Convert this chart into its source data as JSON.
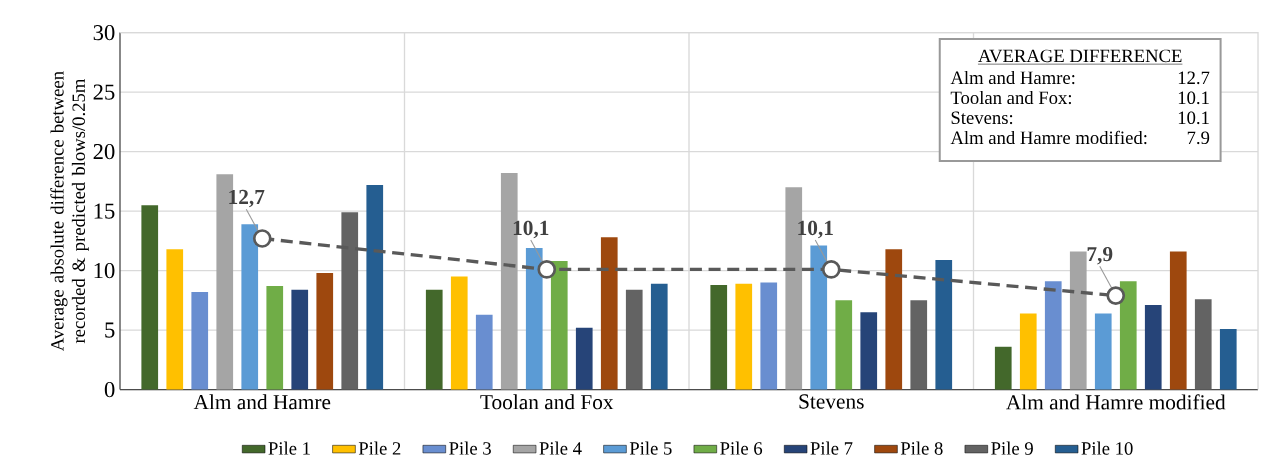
{
  "chart_data": {
    "type": "bar",
    "categories": [
      "Alm and Hamre",
      "Toolan and Fox",
      "Stevens",
      "Alm and Hamre modified"
    ],
    "ylabel": "Average absolute difference between recorded & predicted blows/0.25m",
    "ylim": [
      0,
      30
    ],
    "yticks": [
      0,
      5,
      10,
      15,
      20,
      25,
      30
    ],
    "grid": true,
    "legend": "bottom",
    "series": [
      {
        "name": "Pile 1",
        "color": "#43682b",
        "values": [
          15.5,
          8.4,
          8.8,
          3.6
        ]
      },
      {
        "name": "Pile 2",
        "color": "#ffc000",
        "values": [
          11.8,
          9.5,
          8.9,
          6.4
        ]
      },
      {
        "name": "Pile 3",
        "color": "#698ed0",
        "values": [
          8.2,
          6.3,
          9.0,
          9.1
        ]
      },
      {
        "name": "Pile 4",
        "color": "#a5a5a5",
        "values": [
          18.1,
          18.2,
          17.0,
          11.6
        ]
      },
      {
        "name": "Pile 5",
        "color": "#5b9bd5",
        "values": [
          13.9,
          11.9,
          12.1,
          6.4
        ]
      },
      {
        "name": "Pile 6",
        "color": "#70ad47",
        "values": [
          8.7,
          10.8,
          7.5,
          9.1
        ]
      },
      {
        "name": "Pile 7",
        "color": "#264478",
        "values": [
          8.4,
          5.2,
          6.5,
          7.1
        ]
      },
      {
        "name": "Pile 8",
        "color": "#9e480e",
        "values": [
          9.8,
          12.8,
          11.8,
          11.6
        ]
      },
      {
        "name": "Pile 9",
        "color": "#636363",
        "values": [
          14.9,
          8.4,
          7.5,
          7.6
        ]
      },
      {
        "name": "Pile 10",
        "color": "#255e91",
        "values": [
          17.2,
          8.9,
          10.9,
          5.1
        ]
      },
      {
        "type": "line",
        "color": "#595959",
        "values": [
          12.7,
          10.1,
          10.1,
          7.9
        ],
        "value_labels": [
          "12,7",
          "10,1",
          "10,1",
          "7,9"
        ],
        "marker": "circle",
        "line_style": "dashed"
      }
    ],
    "annotations": [
      "AVERAGE DIFFERENCE",
      "Alm and Hamre:",
      "12.7",
      "Toolan and Fox:",
      "10.1",
      "Stevens:",
      "10.1",
      "Alm and Hamre modified:",
      "7.9"
    ]
  }
}
